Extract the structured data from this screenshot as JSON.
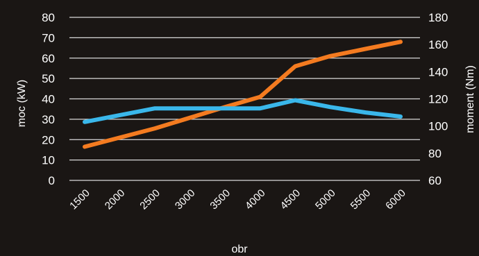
{
  "chart_data": {
    "type": "line",
    "title": "",
    "xlabel": "obr",
    "ylabel_left": "moc (kW)",
    "ylabel_right": "moment (Nm)",
    "x_ticks": [
      "1500",
      "2000",
      "2500",
      "3000",
      "3500",
      "4000",
      "4500",
      "5000",
      "5500",
      "6000"
    ],
    "ylim_left": [
      0,
      80
    ],
    "yticks_left": [
      "0",
      "10",
      "20",
      "30",
      "40",
      "50",
      "60",
      "70",
      "80"
    ],
    "ylim_right": [
      60,
      180
    ],
    "yticks_right": [
      "60",
      "80",
      "100",
      "120",
      "140",
      "160",
      "180"
    ],
    "grid": true,
    "series": [
      {
        "axis": "left",
        "color": "#f47b20",
        "x": [
          1500,
          2500,
          3500,
          4000,
          4500,
          5000,
          5500,
          6000
        ],
        "values": [
          16.5,
          25.5,
          36,
          41,
          56,
          61,
          64.5,
          68
        ]
      },
      {
        "axis": "right",
        "color": "#3ab7ea",
        "x": [
          1500,
          2500,
          3500,
          4000,
          4500,
          5000,
          5500,
          6000
        ],
        "values": [
          103,
          113,
          113,
          113,
          119,
          114,
          110,
          107
        ]
      }
    ]
  }
}
